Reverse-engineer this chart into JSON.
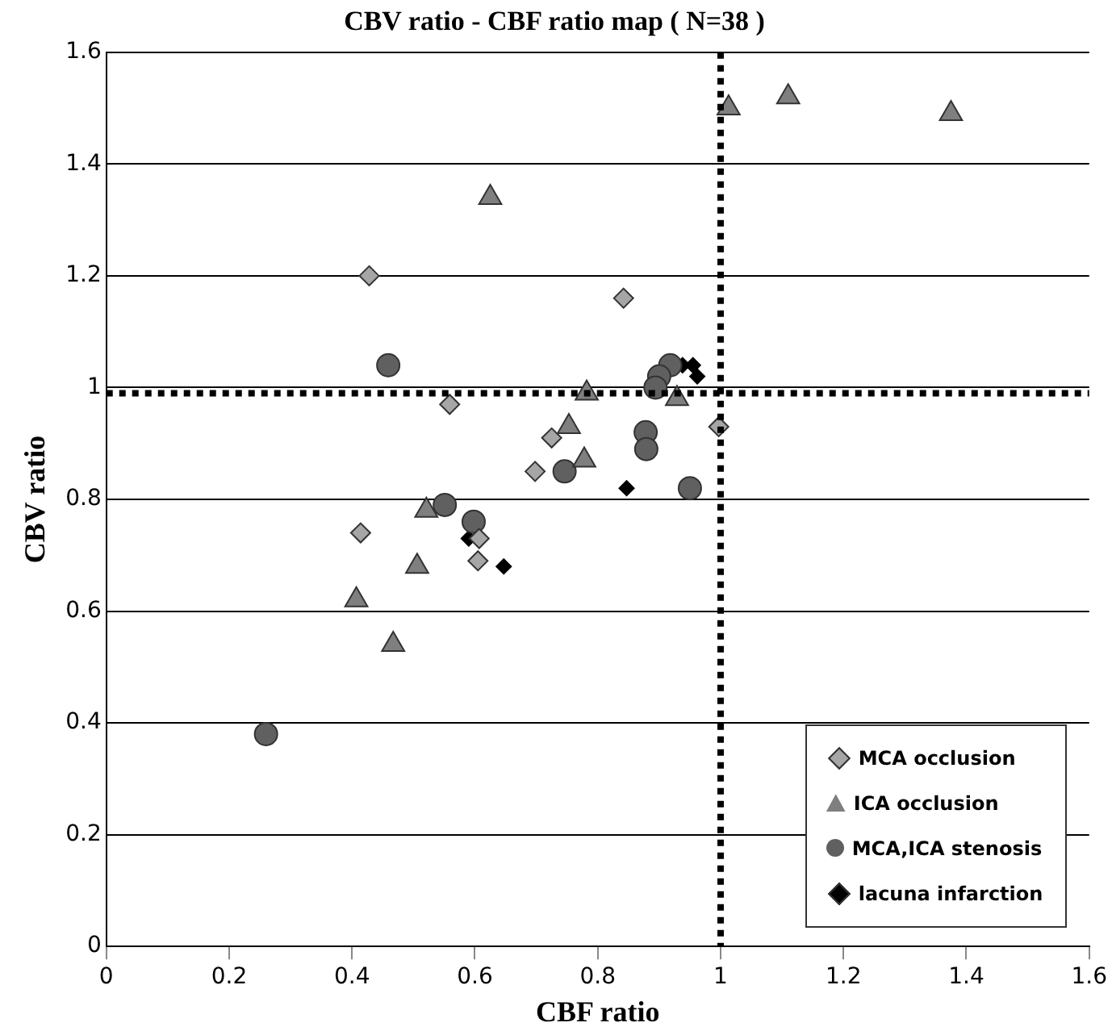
{
  "chart_data": {
    "type": "scatter",
    "title": "CBV ratio - CBF ratio map ( N=38 )",
    "xlabel": "CBF ratio",
    "ylabel": "CBV ratio",
    "xlim": [
      0,
      1.6
    ],
    "xticks": [
      0,
      0.2,
      0.4,
      0.6,
      0.8,
      1,
      1.2,
      1.4,
      1.6
    ],
    "ylim": [
      0,
      1.6
    ],
    "yticks": [
      0,
      0.2,
      0.4,
      0.6,
      0.8,
      1,
      1.2,
      1.4,
      1.6
    ],
    "grid": "y",
    "legend": "bottom right",
    "ref_lines": [
      {
        "axis": "y",
        "value": 0.99,
        "label": null,
        "color": "#000000",
        "line_style": "dotted"
      },
      {
        "axis": "x",
        "value": 1.0,
        "label": null,
        "color": "#000000",
        "line_style": "dotted"
      }
    ],
    "series": [
      {
        "name": "MCA occlusion",
        "color": "#a6a6a6",
        "marker": "diamond",
        "x": [
          0.428,
          0.842,
          0.559,
          0.997,
          0.725,
          0.698,
          0.414,
          0.607,
          0.605
        ],
        "values": [
          1.2,
          1.16,
          0.97,
          0.93,
          0.91,
          0.85,
          0.74,
          0.73,
          0.69
        ]
      },
      {
        "name": "ICA occlusion",
        "color": "#7f7f7f",
        "marker": "triangle",
        "x": [
          0.625,
          0.782,
          0.929,
          0.753,
          0.778,
          0.521,
          0.506,
          0.407,
          0.467,
          1.013,
          1.11,
          1.375
        ],
        "values": [
          1.34,
          0.99,
          0.98,
          0.93,
          0.87,
          0.78,
          0.68,
          0.62,
          0.54,
          1.5,
          1.52,
          1.49
        ]
      },
      {
        "name": "MCA,ICA stenosis",
        "color": "#606060",
        "marker": "circle",
        "x": [
          0.459,
          0.918,
          0.9,
          0.894,
          0.878,
          0.879,
          0.746,
          0.95,
          0.551,
          0.598,
          0.26
        ],
        "values": [
          1.04,
          1.04,
          1.02,
          1.0,
          0.92,
          0.89,
          0.85,
          0.82,
          0.79,
          0.76,
          0.38
        ]
      },
      {
        "name": "lacuna infarction",
        "color": "#000000",
        "marker": "diamond",
        "x": [
          0.938,
          0.955,
          0.962,
          0.847,
          0.59,
          0.647
        ],
        "values": [
          1.04,
          1.04,
          1.02,
          0.82,
          0.73,
          0.68
        ]
      }
    ]
  }
}
